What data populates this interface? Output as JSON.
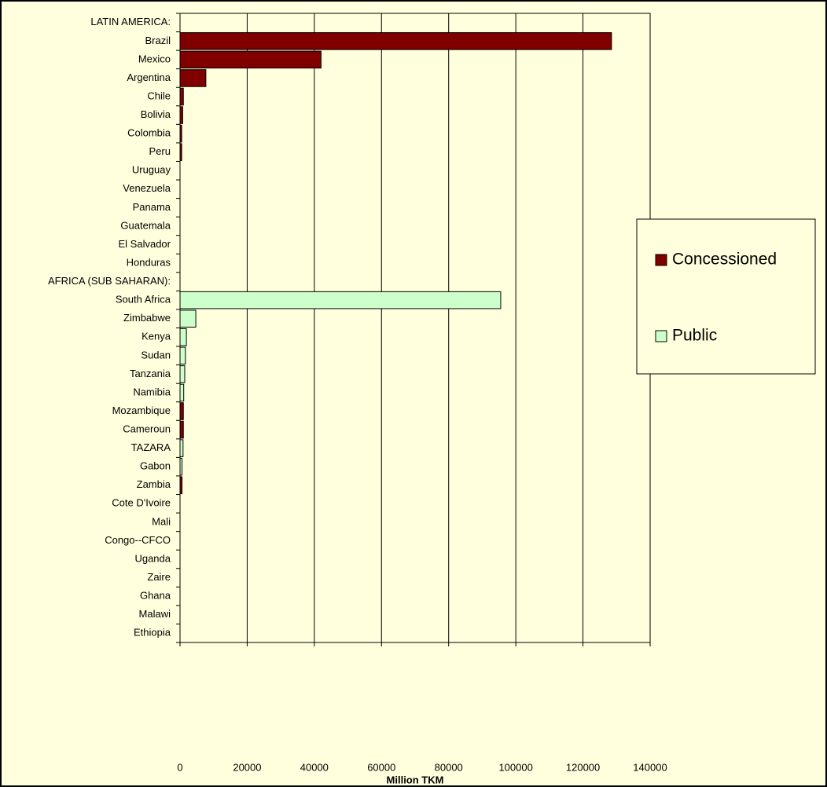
{
  "chart_data": {
    "type": "hbar",
    "categories": [
      "LATIN AMERICA:",
      "Brazil",
      "Mexico",
      "Argentina",
      "Chile",
      "Bolivia",
      "Colombia",
      "Peru",
      "Uruguay",
      "Venezuela",
      "Panama",
      "Guatemala",
      "El Salvador",
      "Honduras",
      "AFRICA (SUB SAHARAN):",
      "South Africa",
      "Zimbabwe",
      "Kenya",
      "Sudan",
      "Tanzania",
      "Namibia",
      "Mozambique",
      "Cameroun",
      "TAZARA",
      "Gabon",
      "Zambia",
      "Cote D'Ivoire",
      "Mali",
      "Congo--CFCO",
      "Uganda",
      "Zaire",
      "Ghana",
      "Malawi",
      "Ethiopia"
    ],
    "series": [
      {
        "name": "Concessioned",
        "color": "#800000",
        "values": [
          null,
          128500,
          42000,
          7700,
          1000,
          800,
          500,
          500,
          null,
          null,
          null,
          null,
          null,
          null,
          null,
          null,
          null,
          null,
          null,
          null,
          null,
          1000,
          1000,
          null,
          null,
          600,
          null,
          null,
          null,
          null,
          null,
          null,
          null,
          null
        ]
      },
      {
        "name": "Public",
        "color": "#ccffcc",
        "values": [
          null,
          null,
          null,
          null,
          null,
          null,
          null,
          null,
          null,
          null,
          null,
          null,
          null,
          null,
          null,
          95500,
          4700,
          1900,
          1600,
          1400,
          1100,
          null,
          null,
          900,
          600,
          null,
          null,
          null,
          null,
          null,
          null,
          null,
          null,
          null
        ]
      }
    ],
    "x_label": "Million TKM",
    "xlim": [
      0,
      140000
    ],
    "xticks": [
      0,
      20000,
      40000,
      60000,
      80000,
      100000,
      120000,
      140000
    ],
    "grid": true,
    "legend": "right"
  }
}
